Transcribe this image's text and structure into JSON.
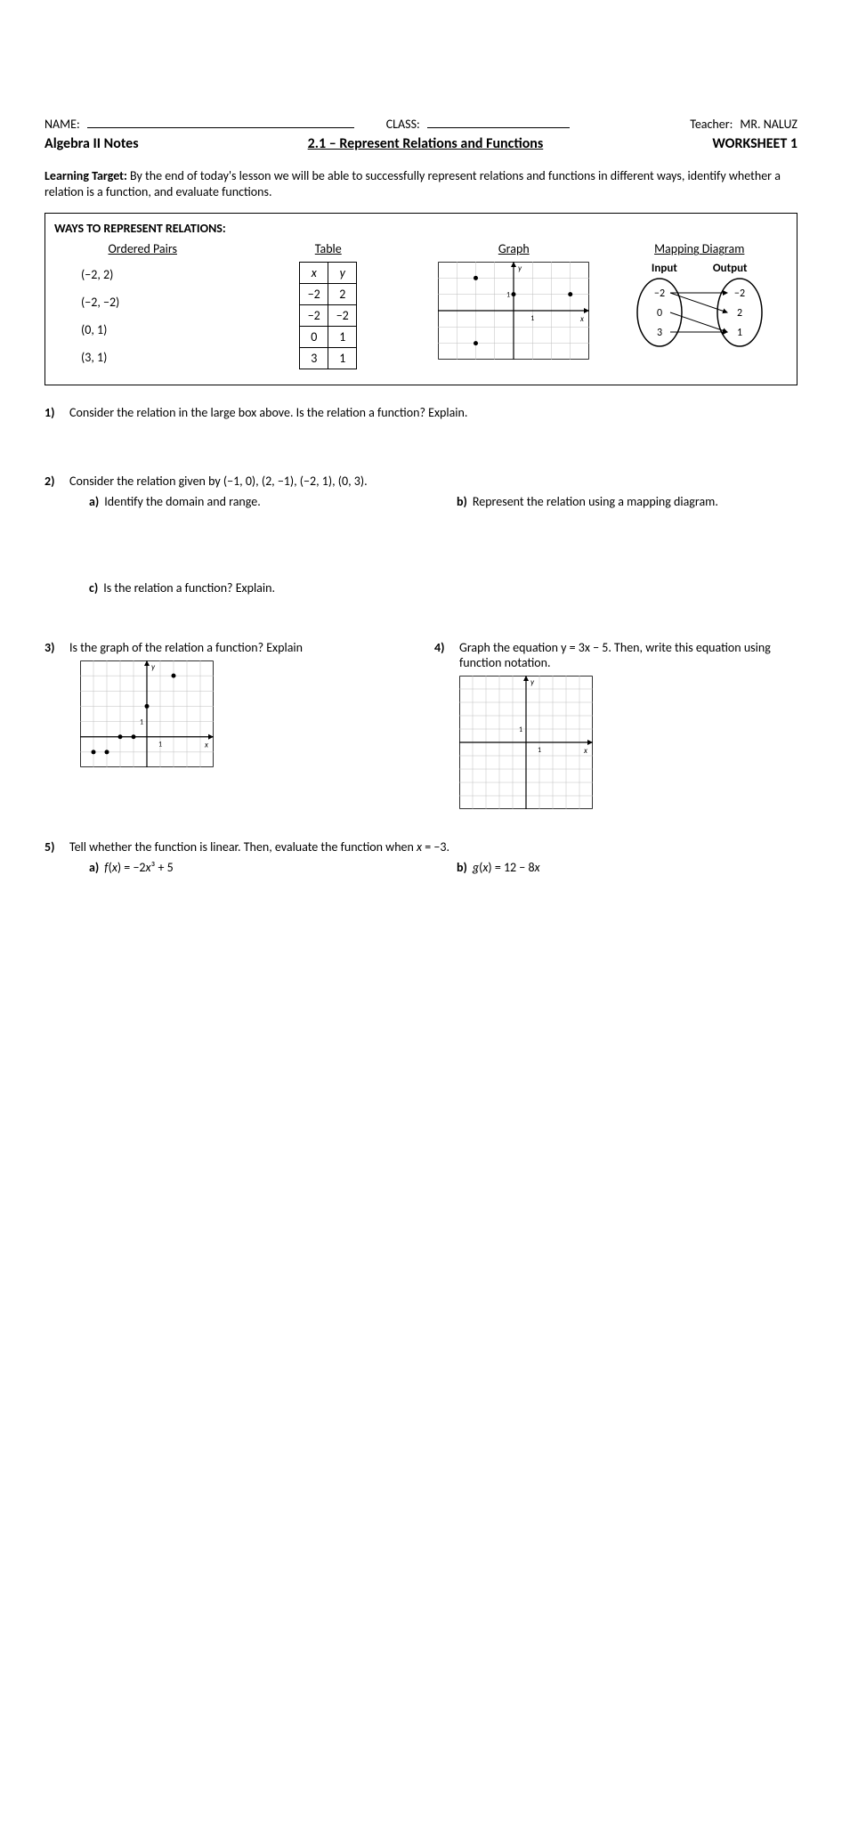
{
  "header": {
    "name_label": "NAME:",
    "class_label": "CLASS:",
    "teacher_label": "Teacher:",
    "teacher_name": "MR. NALUZ",
    "course": "Algebra II Notes",
    "section": "2.1 – Represent Relations and Functions",
    "worksheet": "WORKSHEET 1"
  },
  "learning_target": {
    "label": "Learning Target:",
    "text": "By the end of today's lesson we will be able to successfully represent relations and functions in different ways, identify whether a relation is a function, and evaluate functions."
  },
  "ways_box": {
    "title": "WAYS TO REPRESENT RELATIONS:",
    "headings": {
      "pairs": "Ordered Pairs",
      "table": "Table",
      "graph": "Graph",
      "mapping": "Mapping Diagram"
    },
    "pairs": [
      "(−2, 2)",
      "(−2, −2)",
      "(0, 1)",
      "(3, 1)"
    ],
    "table": {
      "header_x": "x",
      "header_y": "y",
      "rows": [
        [
          "−2",
          "2"
        ],
        [
          "−2",
          "−2"
        ],
        [
          "0",
          "1"
        ],
        [
          "3",
          "1"
        ]
      ]
    },
    "graph": {
      "x_label": "x",
      "y_label": "y",
      "tick_label": "1",
      "points": [
        [
          -2,
          2
        ],
        [
          -2,
          -2
        ],
        [
          0,
          1
        ],
        [
          3,
          1
        ]
      ],
      "xlim": [
        -4,
        4
      ],
      "ylim": [
        -3,
        3
      ],
      "grid_color": "#bfbfbf",
      "axis_color": "#000000",
      "point_color": "#000000"
    },
    "mapping": {
      "input_label": "Input",
      "output_label": "Output",
      "inputs": [
        "−2",
        "0",
        "3"
      ],
      "outputs": [
        "−2",
        "2",
        "1"
      ],
      "edges": [
        [
          0,
          0
        ],
        [
          0,
          1
        ],
        [
          1,
          2
        ],
        [
          2,
          2
        ]
      ],
      "oval_stroke": "#000000",
      "arrow_color": "#000000"
    }
  },
  "q1": {
    "num": "1)",
    "text": "Consider the relation in the large box above. Is the relation a function?  Explain."
  },
  "q2": {
    "num": "2)",
    "text": "Consider the relation given by (−1, 0), (2, −1), (−2, 1), (0, 3).",
    "a_label": "a)",
    "a_text": "Identify the domain and range.",
    "b_label": "b)",
    "b_text": "Represent the relation using a mapping diagram.",
    "c_label": "c)",
    "c_text": "Is the relation a function? Explain."
  },
  "q3": {
    "num": "3)",
    "text": "Is the graph of the relation a function? Explain",
    "graph": {
      "points": [
        [
          -4,
          -1
        ],
        [
          -3,
          -1
        ],
        [
          -2,
          0
        ],
        [
          -1,
          0
        ],
        [
          0,
          2
        ],
        [
          2,
          4
        ]
      ],
      "xlim": [
        -5,
        5
      ],
      "ylim": [
        -2,
        5
      ],
      "tick_label": "1",
      "x_label": "x",
      "y_label": "y",
      "grid_color": "#bfbfbf"
    }
  },
  "q4": {
    "num": "4)",
    "text": "Graph the equation y = 3x − 5. Then, write this equation using function notation.",
    "graph": {
      "xlim": [
        -5,
        5
      ],
      "ylim": [
        -5,
        5
      ],
      "tick_label": "1",
      "x_label": "x",
      "y_label": "y",
      "grid_color": "#bfbfbf"
    }
  },
  "q5": {
    "num": "5)",
    "text": "Tell whether the function is linear. Then, evaluate the function when x = −3.",
    "a_label": "a)",
    "a_text": "f(x) = −2x³ + 5",
    "b_label": "b)",
    "b_text": "g(x) = 12 − 8x"
  }
}
